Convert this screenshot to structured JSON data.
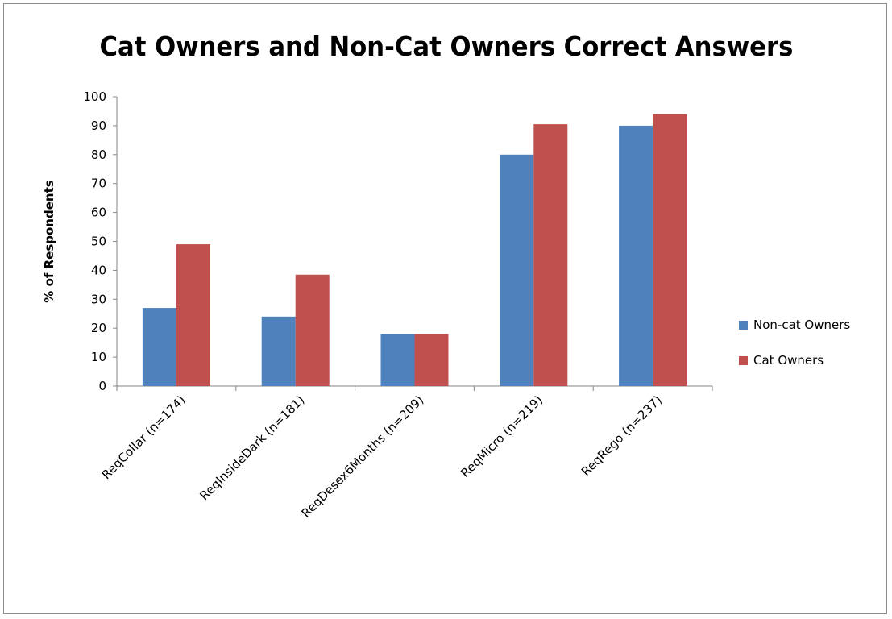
{
  "chart_data": {
    "type": "bar",
    "title": "Cat Owners and Non-Cat Owners Correct Answers",
    "xlabel": "",
    "ylabel": "% of Respondents",
    "ylim": [
      0,
      100
    ],
    "yticks": [
      0,
      10,
      20,
      30,
      40,
      50,
      60,
      70,
      80,
      90,
      100
    ],
    "categories": [
      "ReqCollar (n=174)",
      "ReqInsideDark (n=181)",
      "ReqDesex6Months (n=209)",
      "ReqMicro (n=219)",
      "ReqRego (n=237)"
    ],
    "series": [
      {
        "name": "Non-cat Owners",
        "color": "#4f81bd",
        "values": [
          27,
          24,
          18,
          80,
          90
        ]
      },
      {
        "name": "Cat Owners",
        "color": "#c0504d",
        "values": [
          49,
          38.5,
          18,
          90.5,
          94
        ]
      }
    ],
    "grid": false,
    "legend_position": "right"
  }
}
